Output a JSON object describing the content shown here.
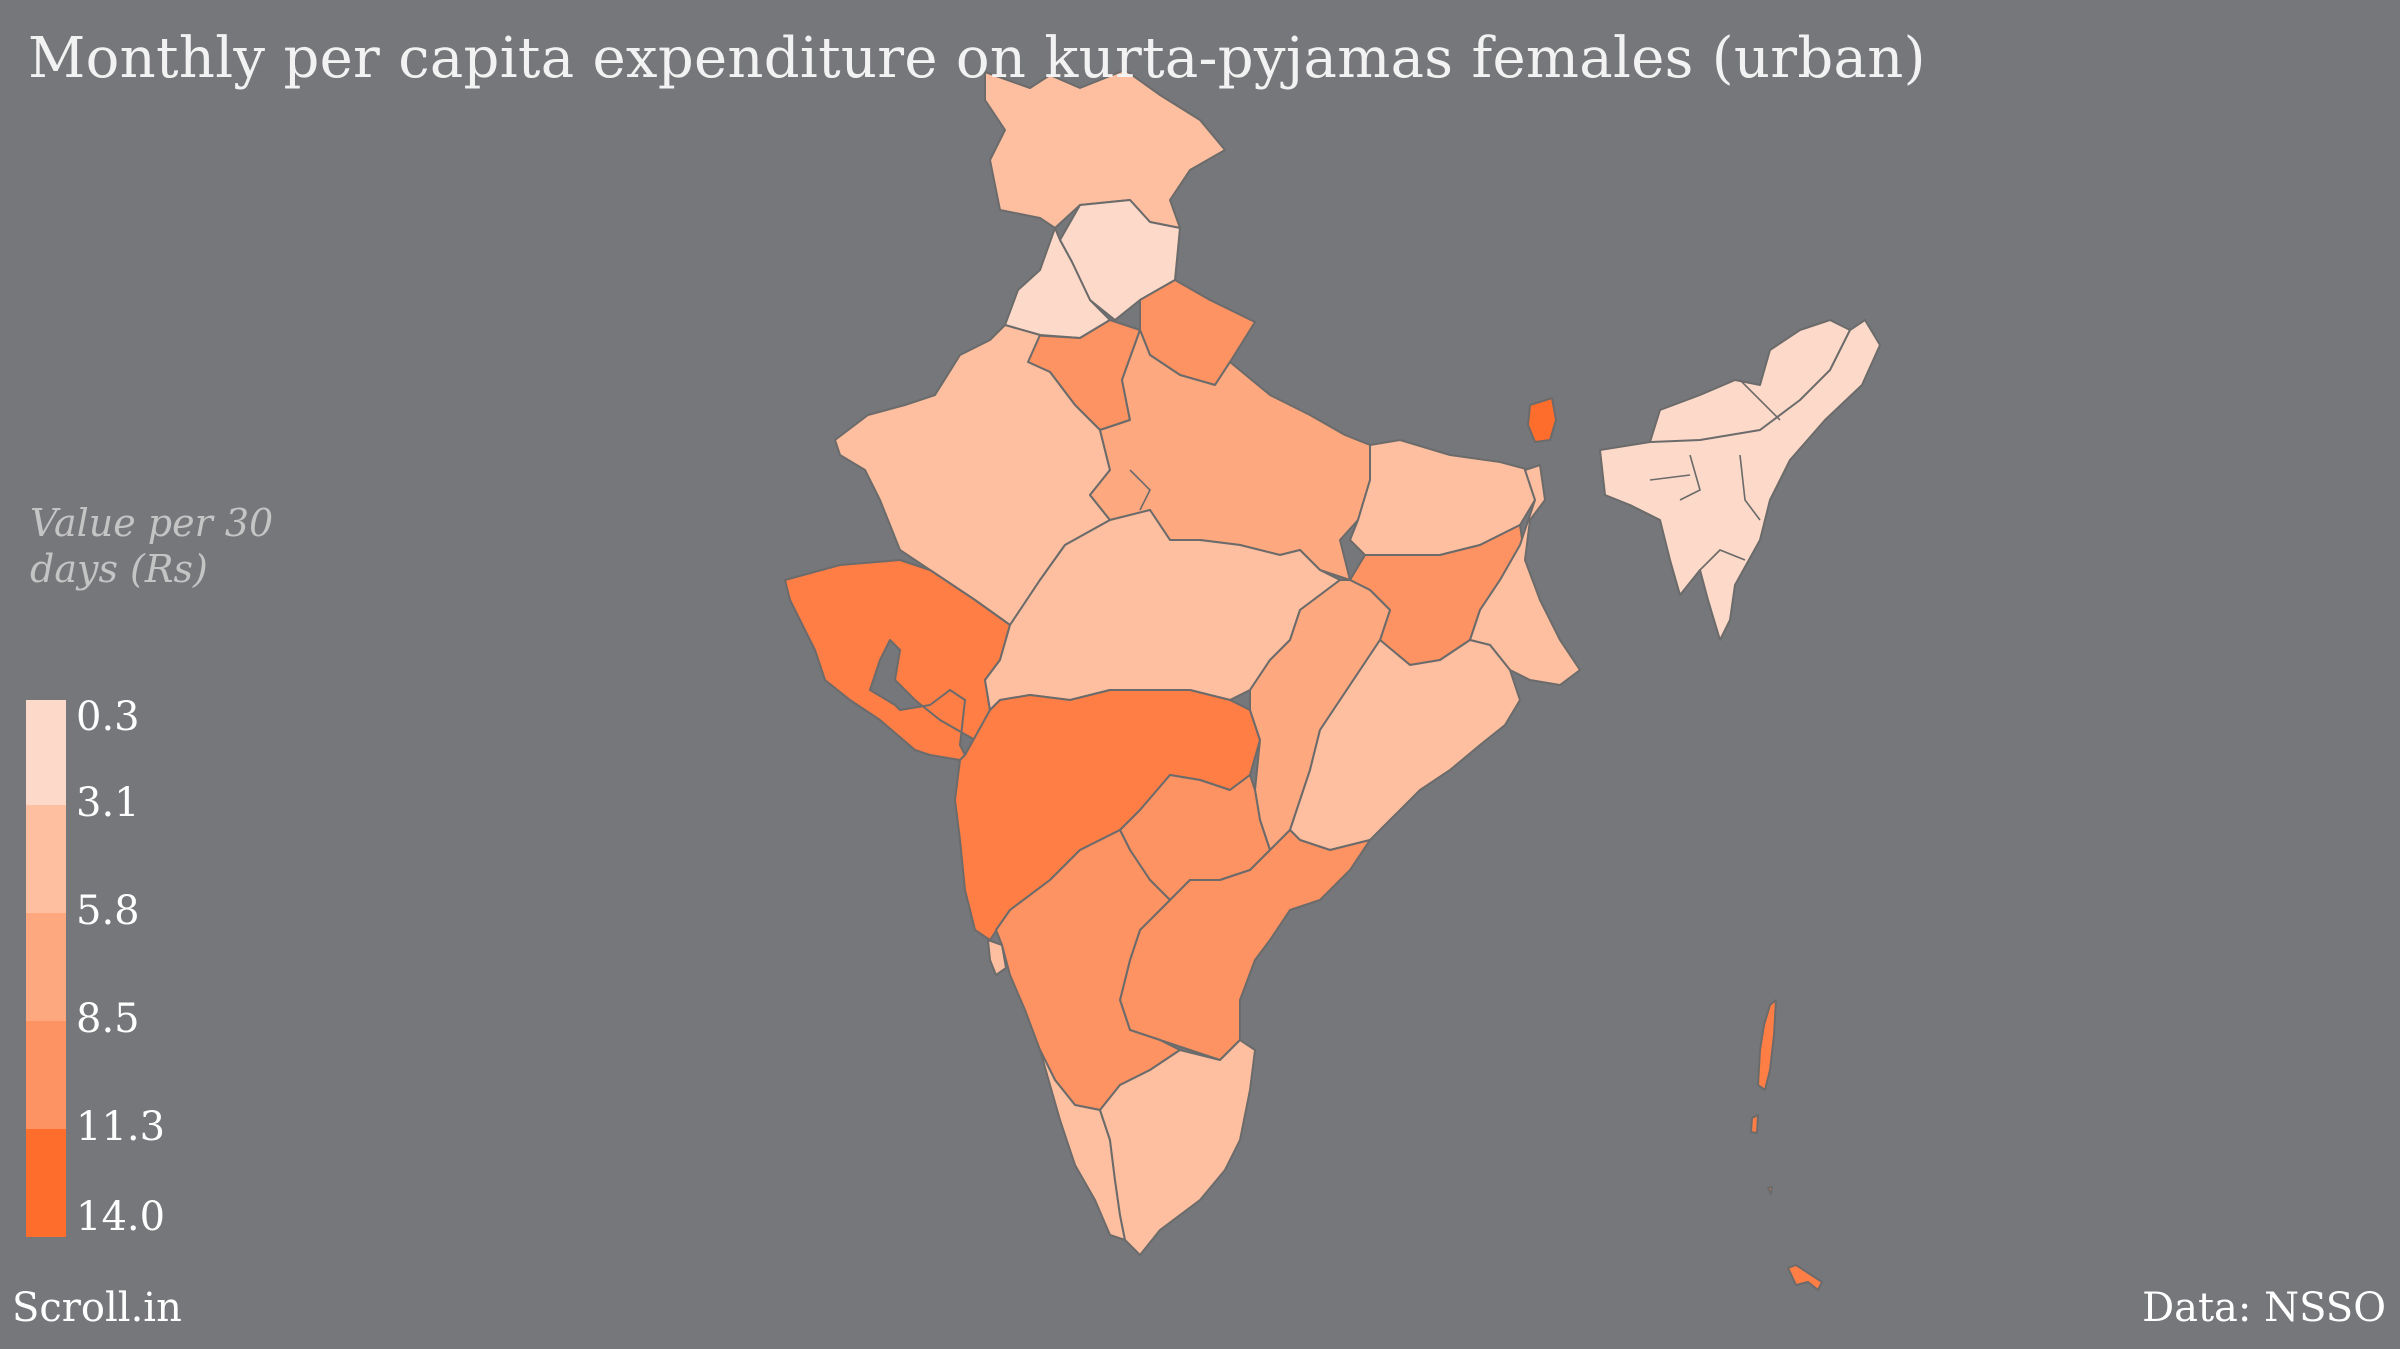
{
  "title": "Monthly per capita expenditure on kurta-pyjamas females (urban)",
  "legend": {
    "title": "Value per 30 days (Rs)",
    "labels": [
      "0.3",
      "3.1",
      "5.8",
      "8.5",
      "11.3",
      "14.0"
    ],
    "colors": [
      "#fcd9c8",
      "#fdbf9f",
      "#fea87f",
      "#fd9262",
      "#fe7e46",
      "#ff6d2c"
    ]
  },
  "colors": {
    "background": "#76777b",
    "border": "#6b6b6b"
  },
  "regions": [
    {
      "name": "Jammu & Kashmir",
      "value_bin": 1
    },
    {
      "name": "Himachal Pradesh",
      "value_bin": 0
    },
    {
      "name": "Punjab",
      "value_bin": 0
    },
    {
      "name": "Haryana",
      "value_bin": 3
    },
    {
      "name": "Uttarakhand",
      "value_bin": 3
    },
    {
      "name": "Rajasthan",
      "value_bin": 1
    },
    {
      "name": "Uttar Pradesh",
      "value_bin": 2
    },
    {
      "name": "Gujarat",
      "value_bin": 4
    },
    {
      "name": "Madhya Pradesh",
      "value_bin": 1
    },
    {
      "name": "Bihar",
      "value_bin": 1
    },
    {
      "name": "Jharkhand",
      "value_bin": 3
    },
    {
      "name": "West Bengal",
      "value_bin": 1
    },
    {
      "name": "Sikkim",
      "value_bin": 5
    },
    {
      "name": "North East",
      "value_bin": 0
    },
    {
      "name": "Maharashtra",
      "value_bin": 4
    },
    {
      "name": "Chhattisgarh",
      "value_bin": 2
    },
    {
      "name": "Odisha",
      "value_bin": 1
    },
    {
      "name": "Telangana",
      "value_bin": 3
    },
    {
      "name": "Andhra Pradesh",
      "value_bin": 3
    },
    {
      "name": "Goa",
      "value_bin": 1
    },
    {
      "name": "Karnataka",
      "value_bin": 3
    },
    {
      "name": "Kerala",
      "value_bin": 1
    },
    {
      "name": "Tamil Nadu",
      "value_bin": 1
    },
    {
      "name": "Andaman & Nicobar",
      "value_bin": 4
    }
  ],
  "footer": {
    "source": "Scroll.in",
    "data_credit": "Data: NSSO"
  }
}
